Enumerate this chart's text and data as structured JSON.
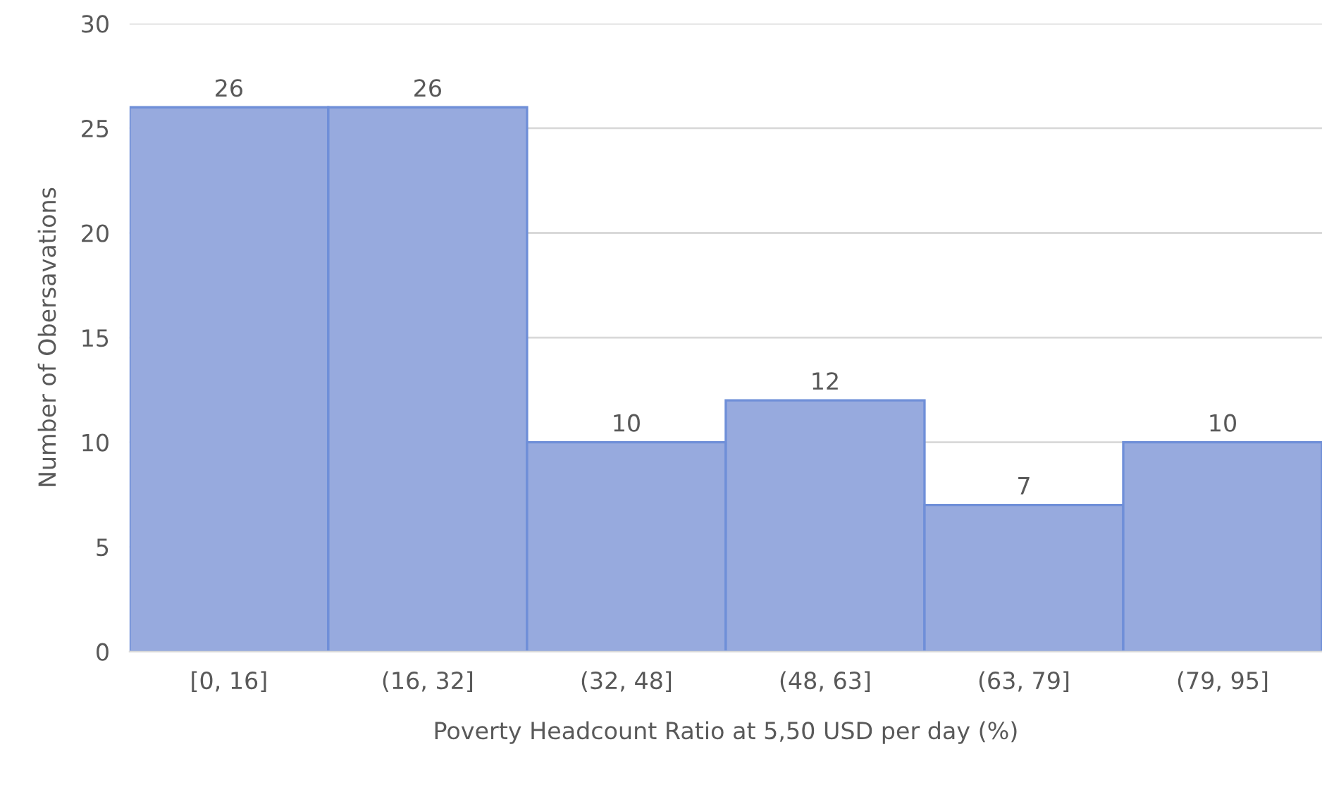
{
  "chart_data": {
    "type": "bar",
    "xlabel": "Poverty Headcount Ratio at 5,50 USD per day (%)",
    "ylabel": "Number of Obersavations",
    "categories": [
      "[0, 16]",
      "(16, 32]",
      "(32, 48]",
      "(48, 63]",
      "(63, 79]",
      "(79, 95]"
    ],
    "values": [
      26,
      26,
      10,
      12,
      7,
      10
    ],
    "color": "#97aade",
    "ylim": [
      0,
      30
    ],
    "yticks": [
      0,
      5,
      10,
      15,
      20,
      25,
      30
    ],
    "grid": "y",
    "data_labels": true
  }
}
